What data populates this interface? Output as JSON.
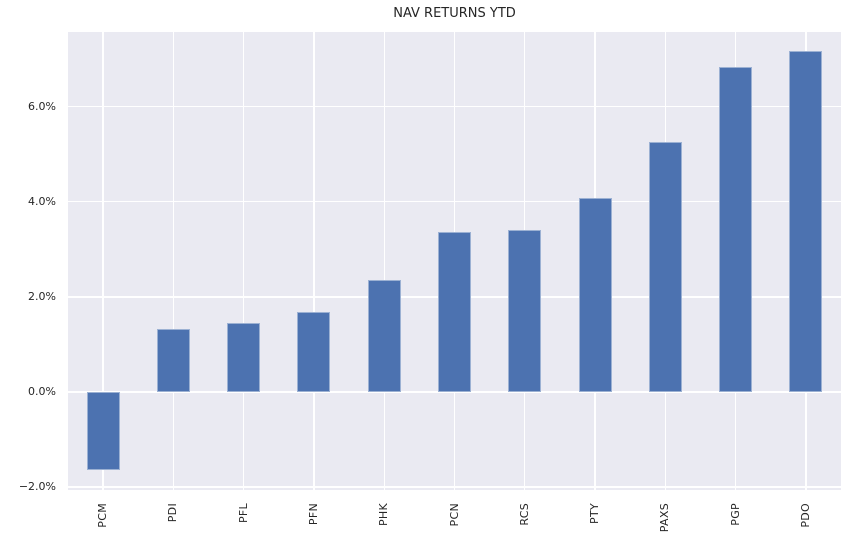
{
  "chart_data": {
    "type": "bar",
    "title": "NAV RETURNS YTD",
    "categories": [
      "PCM",
      "PDI",
      "PFL",
      "PFN",
      "PHK",
      "PCN",
      "RCS",
      "PTY",
      "PAXS",
      "PGP",
      "PDO"
    ],
    "values": [
      -1.65,
      1.33,
      1.46,
      1.68,
      2.35,
      3.37,
      3.41,
      4.08,
      5.26,
      6.84,
      7.18
    ],
    "unit": "%",
    "xlabel": "",
    "ylabel": "",
    "y_ticks": [
      -2.0,
      0.0,
      2.0,
      4.0,
      6.0
    ],
    "y_tick_labels": [
      "−2.0%",
      "0.0%",
      "2.0%",
      "4.0%",
      "6.0%"
    ],
    "ylim": [
      -2.06,
      7.58
    ],
    "grid": "on",
    "legend": "none",
    "colors": {
      "bar": "#4c72b0",
      "plot_background": "#eaeaf2",
      "grid": "#ffffff",
      "text": "#262626",
      "page_background": "#ffffff"
    }
  }
}
